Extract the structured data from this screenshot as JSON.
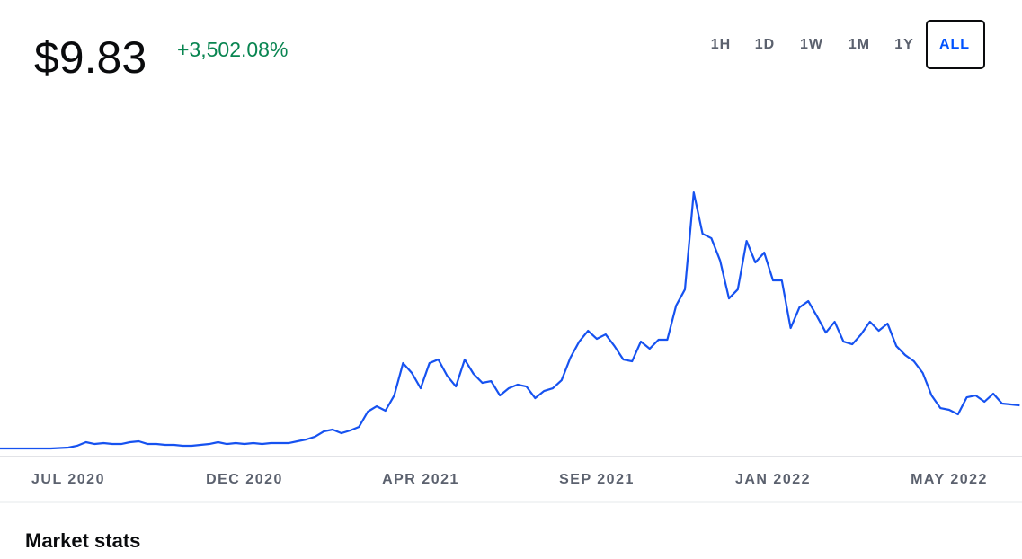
{
  "header": {
    "price": "$9.83",
    "change": "+3,502.08%"
  },
  "ranges": [
    "1H",
    "1D",
    "1W",
    "1M",
    "1Y",
    "ALL"
  ],
  "selected_range": "ALL",
  "section_title": "Market stats",
  "chart_data": {
    "type": "line",
    "color": "#1652f0",
    "ylim": [
      0,
      60
    ],
    "categories": [
      null,
      null,
      null,
      null,
      null,
      null,
      null,
      null,
      "JUL 2020",
      null,
      null,
      null,
      null,
      null,
      null,
      null,
      null,
      null,
      null,
      null,
      null,
      null,
      null,
      null,
      null,
      null,
      null,
      null,
      "DEC 2020",
      null,
      null,
      null,
      null,
      null,
      null,
      null,
      null,
      null,
      null,
      null,
      null,
      null,
      null,
      null,
      null,
      null,
      null,
      null,
      "APR 2021",
      null,
      null,
      null,
      null,
      null,
      null,
      null,
      null,
      null,
      null,
      null,
      null,
      null,
      null,
      null,
      null,
      null,
      null,
      null,
      "SEP 2021",
      null,
      null,
      null,
      null,
      null,
      null,
      null,
      null,
      null,
      null,
      null,
      null,
      null,
      null,
      null,
      null,
      null,
      null,
      null,
      "JAN 2022",
      null,
      null,
      null,
      null,
      null,
      null,
      null,
      null,
      null,
      null,
      null,
      null,
      null,
      null,
      null,
      null,
      null,
      null,
      null,
      "MAY 2022",
      null,
      null,
      null,
      null,
      null,
      null,
      null,
      null
    ],
    "values": [
      0.28,
      0.28,
      0.28,
      0.28,
      0.28,
      0.28,
      0.28,
      0.38,
      0.48,
      0.88,
      1.67,
      1.27,
      1.47,
      1.27,
      1.27,
      1.67,
      1.87,
      1.27,
      1.27,
      1.07,
      1.07,
      0.88,
      0.88,
      1.07,
      1.27,
      1.67,
      1.27,
      1.47,
      1.27,
      1.47,
      1.27,
      1.47,
      1.47,
      1.47,
      1.87,
      2.27,
      2.87,
      4.06,
      4.46,
      3.66,
      4.26,
      5.06,
      8.44,
      9.63,
      8.64,
      12.02,
      19.18,
      17.0,
      13.61,
      19.18,
      19.98,
      16.4,
      14.01,
      19.98,
      16.8,
      14.81,
      15.2,
      12.02,
      13.61,
      14.41,
      14.01,
      11.42,
      13.01,
      13.61,
      15.4,
      20.38,
      23.96,
      26.35,
      24.56,
      25.55,
      22.96,
      19.98,
      19.58,
      23.96,
      22.37,
      24.36,
      24.36,
      31.92,
      35.5,
      57.0,
      47.84,
      46.85,
      41.87,
      33.51,
      35.5,
      46.25,
      41.48,
      43.66,
      37.49,
      37.49,
      26.94,
      31.52,
      32.91,
      29.53,
      25.95,
      28.34,
      23.96,
      23.36,
      25.55,
      28.34,
      26.35,
      27.94,
      22.96,
      20.97,
      19.58,
      17.0,
      12.02,
      9.23,
      8.84,
      7.84,
      11.62,
      12.02,
      10.63,
      12.42,
      10.23,
      10.03,
      9.83
    ]
  }
}
